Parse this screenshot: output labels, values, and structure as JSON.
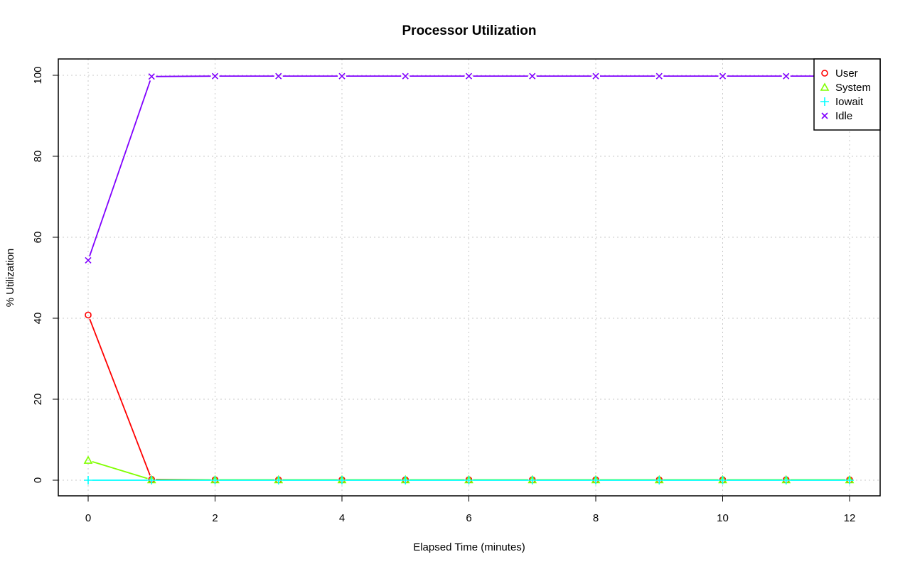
{
  "chart_data": {
    "type": "line",
    "title": "Processor Utilization",
    "xlabel": "Elapsed Time (minutes)",
    "ylabel": "% Utilization",
    "xlim": [
      0,
      12
    ],
    "ylim": [
      0,
      100
    ],
    "x_ticks": [
      0,
      2,
      4,
      6,
      8,
      10,
      12
    ],
    "y_ticks": [
      0,
      20,
      40,
      60,
      80,
      100
    ],
    "grid": true,
    "legend_position": "top-right",
    "x": [
      0,
      1,
      2,
      3,
      4,
      5,
      6,
      7,
      8,
      9,
      10,
      11,
      12
    ],
    "series": [
      {
        "name": "User",
        "color": "#ff0000",
        "marker": "circle",
        "values": [
          40.8,
          0.2,
          0.1,
          0.1,
          0.1,
          0.1,
          0.1,
          0.1,
          0.1,
          0.1,
          0.1,
          0.1,
          0.1
        ]
      },
      {
        "name": "System",
        "color": "#80ff00",
        "marker": "triangle",
        "values": [
          4.9,
          0.1,
          0.1,
          0.1,
          0.1,
          0.1,
          0.1,
          0.1,
          0.1,
          0.1,
          0.1,
          0.1,
          0.1
        ]
      },
      {
        "name": "Iowait",
        "color": "#00ffff",
        "marker": "plus",
        "values": [
          0,
          0,
          0,
          0,
          0,
          0,
          0,
          0,
          0,
          0,
          0,
          0,
          0
        ]
      },
      {
        "name": "Idle",
        "color": "#8000ff",
        "marker": "cross",
        "values": [
          54.3,
          99.7,
          99.8,
          99.8,
          99.8,
          99.8,
          99.8,
          99.8,
          99.8,
          99.8,
          99.8,
          99.8,
          99.8
        ]
      }
    ]
  }
}
